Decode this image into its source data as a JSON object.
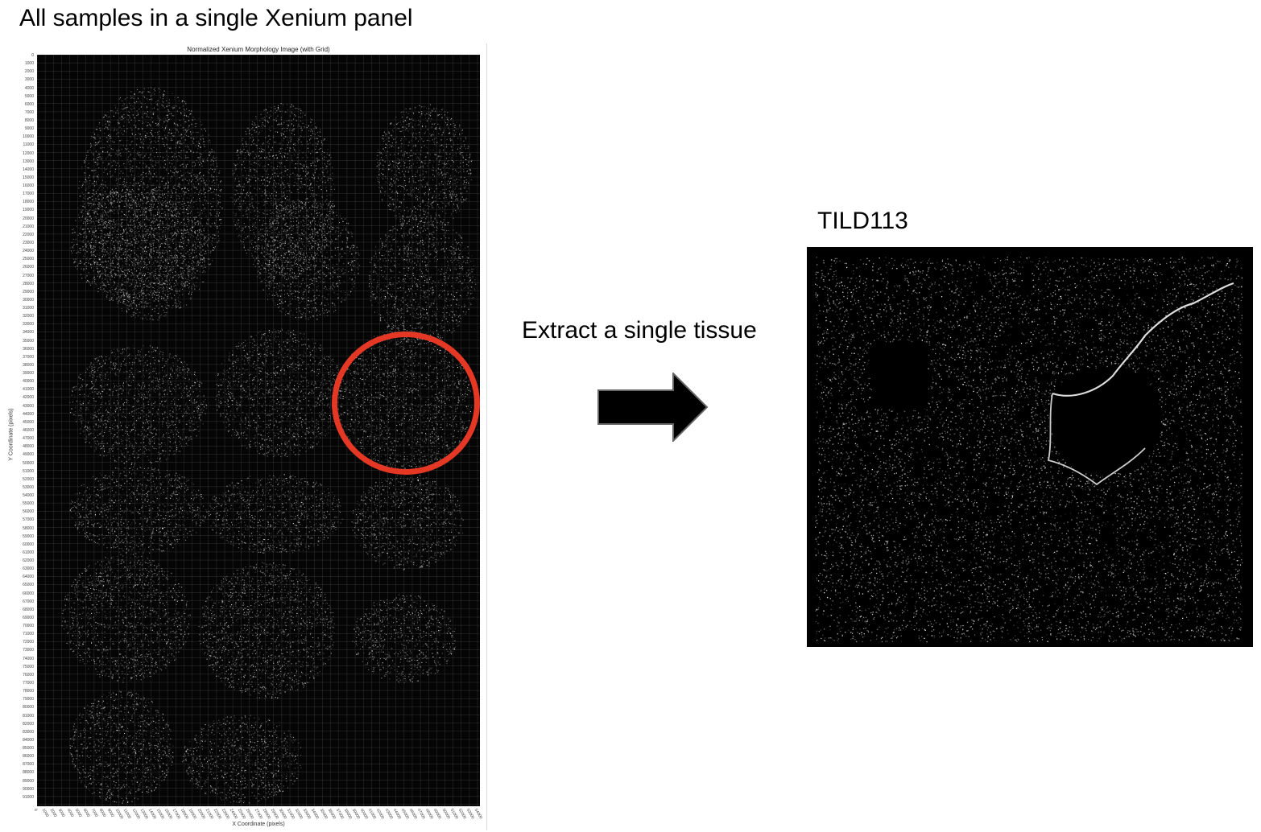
{
  "main_title": "All samples in a single Xenium panel",
  "morphology_plot": {
    "title": "Normalized Xenium Morphology Image (with Grid)",
    "xlabel": "X Coordinate (pixels)",
    "ylabel": "Y Coordinate (pixels)",
    "y_ticks": [
      "0",
      "1000",
      "2000",
      "3000",
      "4000",
      "5000",
      "6000",
      "7000",
      "8000",
      "9000",
      "10000",
      "11000",
      "12000",
      "13000",
      "14000",
      "15000",
      "16000",
      "17000",
      "18000",
      "19000",
      "20000",
      "21000",
      "22000",
      "23000",
      "24000",
      "25000",
      "26000",
      "27000",
      "28000",
      "29000",
      "30000",
      "31000",
      "32000",
      "33000",
      "34000",
      "35000",
      "36000",
      "37000",
      "38000",
      "39000",
      "40000",
      "41000",
      "42000",
      "43000",
      "44000",
      "45000",
      "46000",
      "47000",
      "48000",
      "49000",
      "50000",
      "51000",
      "52000",
      "53000",
      "54000",
      "55000",
      "56000",
      "57000",
      "58000",
      "59000",
      "60000",
      "61000",
      "62000",
      "63000",
      "64000",
      "65000",
      "66000",
      "67000",
      "68000",
      "69000",
      "70000",
      "71000",
      "72000",
      "73000",
      "74000",
      "75000",
      "76000",
      "77000",
      "78000",
      "79000",
      "80000",
      "81000",
      "82000",
      "83000",
      "84000",
      "85000",
      "86000",
      "87000",
      "88000",
      "89000",
      "90000",
      "91000"
    ],
    "x_ticks": [
      "0",
      "1000",
      "2000",
      "3000",
      "4000",
      "5000",
      "6000",
      "7000",
      "8000",
      "9000",
      "10000",
      "11000",
      "12000",
      "13000",
      "14000",
      "15000",
      "16000",
      "17000",
      "18000",
      "19000",
      "20000",
      "21000",
      "22000",
      "23000",
      "24000",
      "25000",
      "26000",
      "27000",
      "28000",
      "29000",
      "30000",
      "31000",
      "32000",
      "33000",
      "34000",
      "35000",
      "36000",
      "37000",
      "38000",
      "39000",
      "40000",
      "41000",
      "42000",
      "43000",
      "44000",
      "45000",
      "46000",
      "47000",
      "48000",
      "49000",
      "50000",
      "51000",
      "52000",
      "53000",
      "54000"
    ],
    "highlight_color": "#e43825"
  },
  "step_label": "Extract a single tissue",
  "arrow_icon": "right-arrow-icon",
  "extracted_tissue": {
    "label": "TILD113"
  }
}
